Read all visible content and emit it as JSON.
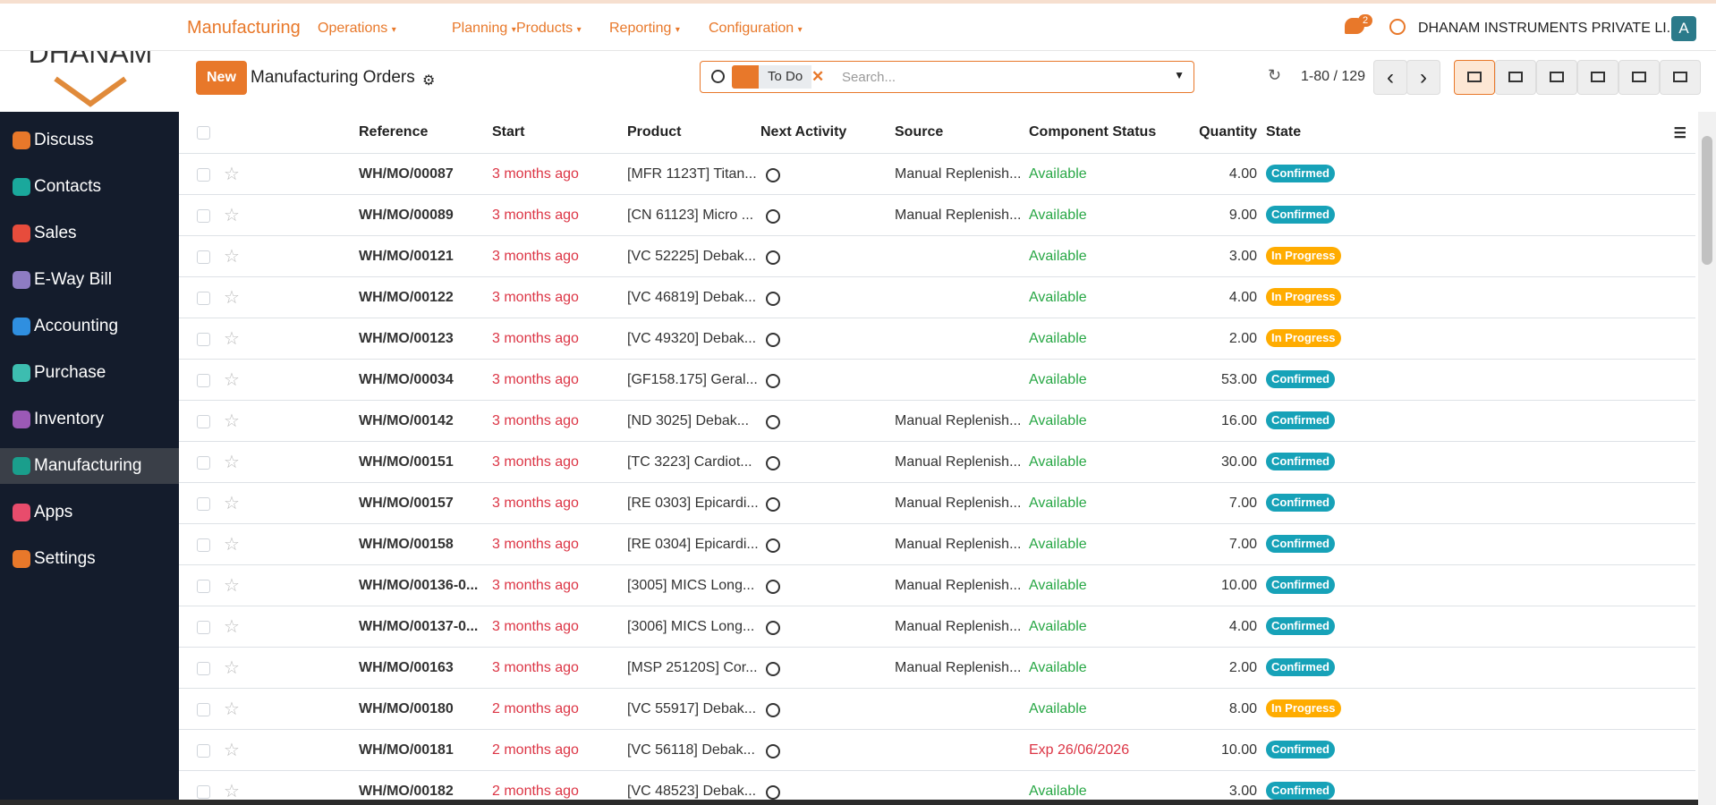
{
  "logo": "DHANAM",
  "topbar": {
    "app": "Manufacturing",
    "menus": [
      "Operations",
      "Planning",
      "Products",
      "Reporting",
      "Configuration"
    ],
    "notifications": "2",
    "company": "DHANAM INSTRUMENTS PRIVATE LI...",
    "avatar": "A"
  },
  "control": {
    "new": "New",
    "title": "Manufacturing Orders",
    "facet": "To Do",
    "search_placeholder": "Search...",
    "pager": "1-80 / 129"
  },
  "sidebar": [
    "Discuss",
    "Contacts",
    "Sales",
    "E-Way Bill",
    "Accounting",
    "Purchase",
    "Inventory",
    "Manufacturing",
    "Apps",
    "Settings"
  ],
  "table": {
    "headers": [
      "Reference",
      "Start",
      "Product",
      "Next Activity",
      "Source",
      "Component Status",
      "Quantity",
      "State"
    ],
    "rows": [
      {
        "reference": "WH/MO/00087",
        "start": "3 months ago",
        "product": "[MFR 1123T] Titan...",
        "source": "Manual Replenish...",
        "status": "Available",
        "status_color": "#28a745",
        "quantity": "4.00",
        "state": "Confirmed",
        "state_color": "#17a2b8"
      },
      {
        "reference": "WH/MO/00089",
        "start": "3 months ago",
        "product": "[CN 61123] Micro ...",
        "source": "Manual Replenish...",
        "status": "Available",
        "status_color": "#28a745",
        "quantity": "9.00",
        "state": "Confirmed",
        "state_color": "#17a2b8"
      },
      {
        "reference": "WH/MO/00121",
        "start": "3 months ago",
        "product": "[VC 52225] Debak...",
        "status": "Available",
        "status_color": "#28a745",
        "quantity": "3.00",
        "state": "In Progress",
        "state_color": "#ffac00"
      },
      {
        "reference": "WH/MO/00122",
        "start": "3 months ago",
        "product": "[VC 46819] Debak...",
        "status": "Available",
        "status_color": "#28a745",
        "quantity": "4.00",
        "state": "In Progress",
        "state_color": "#ffac00"
      },
      {
        "reference": "WH/MO/00123",
        "start": "3 months ago",
        "product": "[VC 49320] Debak...",
        "status": "Available",
        "status_color": "#28a745",
        "quantity": "2.00",
        "state": "In Progress",
        "state_color": "#ffac00"
      },
      {
        "reference": "WH/MO/00034",
        "start": "3 months ago",
        "product": "[GF158.175] Geral...",
        "status": "Available",
        "status_color": "#28a745",
        "quantity": "53.00",
        "state": "Confirmed",
        "state_color": "#17a2b8"
      },
      {
        "reference": "WH/MO/00142",
        "start": "3 months ago",
        "product": "[ND 3025] Debak...",
        "source": "Manual Replenish...",
        "status": "Available",
        "status_color": "#28a745",
        "quantity": "16.00",
        "state": "Confirmed",
        "state_color": "#17a2b8"
      },
      {
        "reference": "WH/MO/00151",
        "start": "3 months ago",
        "product": "[TC 3223] Cardiot...",
        "source": "Manual Replenish...",
        "status": "Available",
        "status_color": "#28a745",
        "quantity": "30.00",
        "state": "Confirmed",
        "state_color": "#17a2b8"
      },
      {
        "reference": "WH/MO/00157",
        "start": "3 months ago",
        "product": "[RE 0303] Epicardi...",
        "source": "Manual Replenish...",
        "status": "Available",
        "status_color": "#28a745",
        "quantity": "7.00",
        "state": "Confirmed",
        "state_color": "#17a2b8"
      },
      {
        "reference": "WH/MO/00158",
        "start": "3 months ago",
        "product": "[RE 0304] Epicardi...",
        "source": "Manual Replenish...",
        "status": "Available",
        "status_color": "#28a745",
        "quantity": "7.00",
        "state": "Confirmed",
        "state_color": "#17a2b8"
      },
      {
        "reference": "WH/MO/00136-0...",
        "start": "3 months ago",
        "product": "[3005] MICS Long...",
        "source": "Manual Replenish...",
        "status": "Available",
        "status_color": "#28a745",
        "quantity": "10.00",
        "state": "Confirmed",
        "state_color": "#17a2b8"
      },
      {
        "reference": "WH/MO/00137-0...",
        "start": "3 months ago",
        "product": "[3006] MICS Long...",
        "source": "Manual Replenish...",
        "status": "Available",
        "status_color": "#28a745",
        "quantity": "4.00",
        "state": "Confirmed",
        "state_color": "#17a2b8"
      },
      {
        "reference": "WH/MO/00163",
        "start": "3 months ago",
        "product": "[MSP 25120S] Cor...",
        "source": "Manual Replenish...",
        "status": "Available",
        "status_color": "#28a745",
        "quantity": "2.00",
        "state": "Confirmed",
        "state_color": "#17a2b8"
      },
      {
        "reference": "WH/MO/00180",
        "start": "2 months ago",
        "product": "[VC 55917] Debak...",
        "status": "Available",
        "status_color": "#28a745",
        "quantity": "8.00",
        "state": "In Progress",
        "state_color": "#ffac00"
      },
      {
        "reference": "WH/MO/00181",
        "start": "2 months ago",
        "product": "[VC 56118] Debak...",
        "status": "Exp 26/06/2026",
        "status_color": "#dc3545",
        "quantity": "10.00",
        "state": "Confirmed",
        "state_color": "#17a2b8"
      },
      {
        "reference": "WH/MO/00182",
        "start": "2 months ago",
        "product": "[VC 48523] Debak...",
        "status": "Available",
        "status_color": "#28a745",
        "quantity": "3.00",
        "state": "Confirmed",
        "state_color": "#17a2b8"
      }
    ]
  }
}
